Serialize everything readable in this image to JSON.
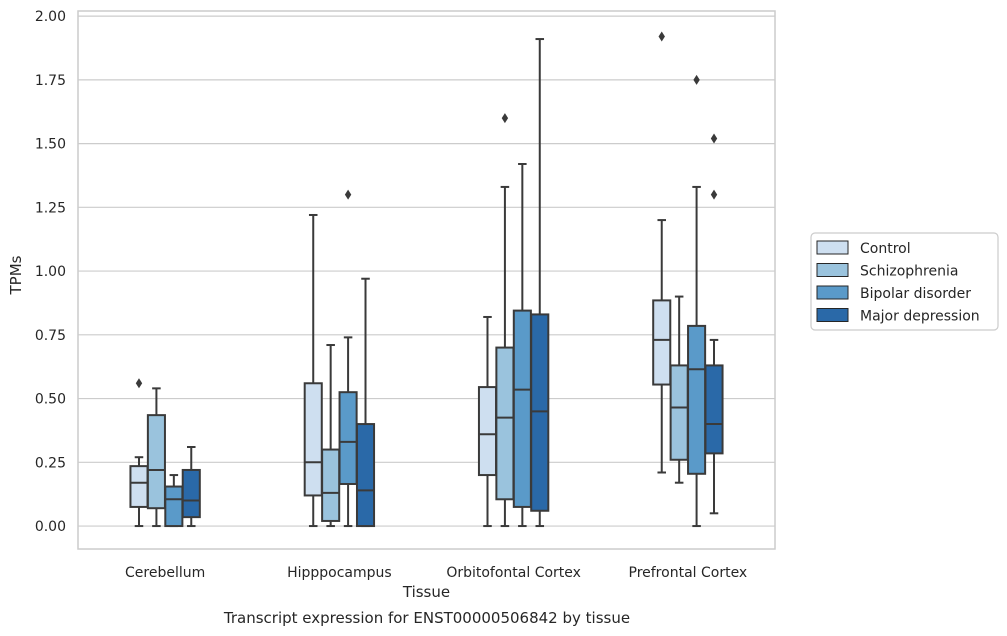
{
  "caption": "Transcript expression for ENST00000506842 by tissue",
  "chart_data": {
    "type": "box",
    "xlabel": "Tissue",
    "ylabel": "TPMs",
    "ylim": [
      -0.09,
      2.02
    ],
    "yticks": [
      "0.00",
      "0.25",
      "0.50",
      "0.75",
      "1.00",
      "1.25",
      "1.50",
      "1.75",
      "2.00"
    ],
    "grid": "horizontal",
    "legend_position": "right",
    "categories": [
      "Cerebellum",
      "Hipppocampus",
      "Orbitofontal Cortex",
      "Prefrontal Cortex"
    ],
    "series": [
      {
        "name": "Control",
        "color": "#cedff0",
        "boxes": [
          {
            "whislo": 0.0,
            "q1": 0.075,
            "med": 0.17,
            "q3": 0.235,
            "whishi": 0.27,
            "fliers": [
              0.56
            ]
          },
          {
            "whislo": 0.0,
            "q1": 0.12,
            "med": 0.25,
            "q3": 0.56,
            "whishi": 1.22,
            "fliers": []
          },
          {
            "whislo": 0.0,
            "q1": 0.2,
            "med": 0.36,
            "q3": 0.545,
            "whishi": 0.82,
            "fliers": []
          },
          {
            "whislo": 0.21,
            "q1": 0.555,
            "med": 0.73,
            "q3": 0.885,
            "whishi": 1.2,
            "fliers": [
              1.92
            ]
          }
        ]
      },
      {
        "name": "Schizophrenia",
        "color": "#9ac3dd",
        "boxes": [
          {
            "whislo": 0.0,
            "q1": 0.07,
            "med": 0.22,
            "q3": 0.435,
            "whishi": 0.54,
            "fliers": []
          },
          {
            "whislo": 0.0,
            "q1": 0.02,
            "med": 0.13,
            "q3": 0.3,
            "whishi": 0.71,
            "fliers": []
          },
          {
            "whislo": 0.0,
            "q1": 0.105,
            "med": 0.425,
            "q3": 0.7,
            "whishi": 1.33,
            "fliers": [
              1.6
            ]
          },
          {
            "whislo": 0.17,
            "q1": 0.26,
            "med": 0.465,
            "q3": 0.63,
            "whishi": 0.9,
            "fliers": []
          }
        ]
      },
      {
        "name": "Bipolar disorder",
        "color": "#5a9ac9",
        "boxes": [
          {
            "whislo": 0.0,
            "q1": 0.0,
            "med": 0.105,
            "q3": 0.155,
            "whishi": 0.2,
            "fliers": []
          },
          {
            "whislo": 0.0,
            "q1": 0.165,
            "med": 0.33,
            "q3": 0.525,
            "whishi": 0.74,
            "fliers": [
              1.3
            ]
          },
          {
            "whislo": 0.0,
            "q1": 0.075,
            "med": 0.535,
            "q3": 0.845,
            "whishi": 1.42,
            "fliers": []
          },
          {
            "whislo": 0.0,
            "q1": 0.205,
            "med": 0.615,
            "q3": 0.785,
            "whishi": 1.33,
            "fliers": [
              1.75
            ]
          }
        ]
      },
      {
        "name": "Major depression",
        "color": "#2a69a8",
        "boxes": [
          {
            "whislo": 0.0,
            "q1": 0.035,
            "med": 0.1,
            "q3": 0.22,
            "whishi": 0.31,
            "fliers": []
          },
          {
            "whislo": 0.0,
            "q1": 0.0,
            "med": 0.14,
            "q3": 0.4,
            "whishi": 0.97,
            "fliers": []
          },
          {
            "whislo": 0.0,
            "q1": 0.06,
            "med": 0.45,
            "q3": 0.83,
            "whishi": 1.91,
            "fliers": []
          },
          {
            "whislo": 0.05,
            "q1": 0.285,
            "med": 0.4,
            "q3": 0.63,
            "whishi": 0.73,
            "fliers": [
              1.52,
              1.3
            ]
          }
        ]
      }
    ]
  }
}
